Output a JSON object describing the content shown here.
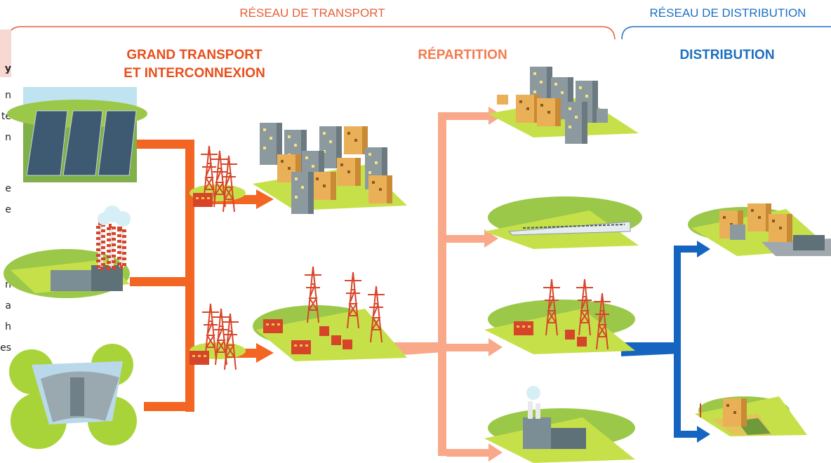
{
  "header": {
    "transport": "RÉSEAU DE TRANSPORT",
    "distribution": "RÉSEAU DE DISTRIBUTION"
  },
  "sections": {
    "grand_transport": [
      "GRAND TRANSPORT",
      "ET INTERCONNEXION"
    ],
    "repartition": "RÉPARTITION",
    "distribution": "DISTRIBUTION"
  },
  "side_fragments": [
    "y",
    "n",
    "te",
    "n",
    "e",
    "e",
    "n",
    "a",
    "h",
    "es"
  ]
}
